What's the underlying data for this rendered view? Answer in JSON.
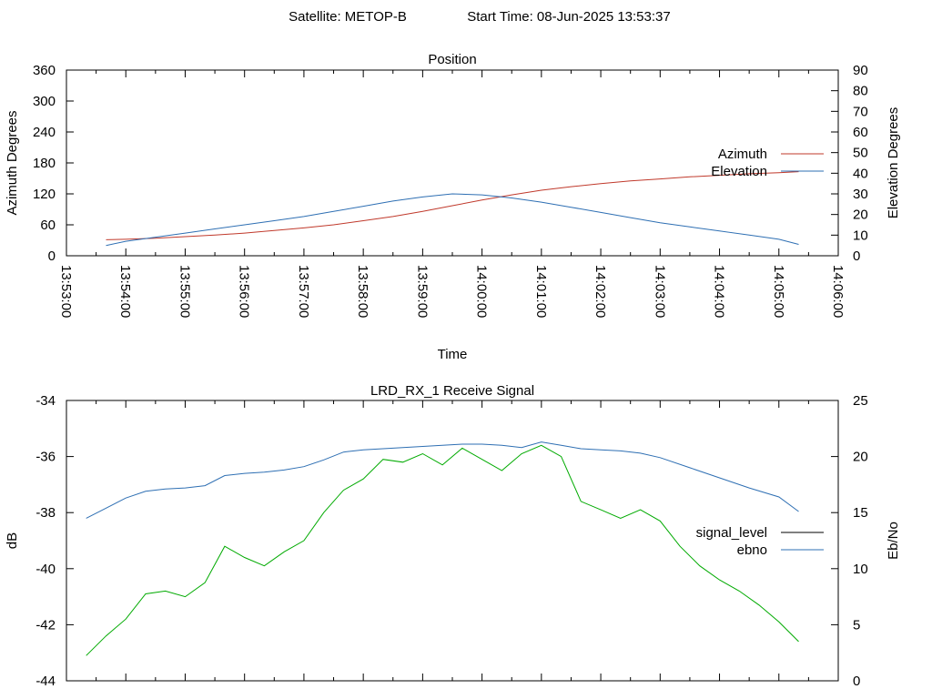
{
  "header": {
    "satellite": "Satellite: METOP-B",
    "start_time": "Start Time: 08-Jun-2025 13:53:37"
  },
  "chart_data": [
    {
      "type": "line",
      "title": "Position",
      "xlabel": "Time",
      "ylabel": "Azimuth Degrees",
      "y2label": "Elevation Degrees",
      "xlim": [
        "13:53:00",
        "14:06:00"
      ],
      "x_ticks": [
        "13:53:00",
        "13:54:00",
        "13:55:00",
        "13:56:00",
        "13:57:00",
        "13:58:00",
        "13:59:00",
        "14:00:00",
        "14:01:00",
        "14:02:00",
        "14:03:00",
        "14:04:00",
        "14:05:00",
        "14:06:00"
      ],
      "ylim": [
        0,
        360
      ],
      "y_ticks": [
        0,
        60,
        120,
        180,
        240,
        300,
        360
      ],
      "y2lim": [
        0,
        90
      ],
      "y2_ticks": [
        0,
        10,
        20,
        30,
        40,
        50,
        60,
        70,
        80,
        90
      ],
      "legend_position": "right",
      "grid": false,
      "series": [
        {
          "name": "Azimuth",
          "axis": "y",
          "color": "#c0392b",
          "x": [
            "13:53:40",
            "13:54:00",
            "13:54:30",
            "13:55:00",
            "13:55:30",
            "13:56:00",
            "13:56:30",
            "13:57:00",
            "13:57:30",
            "13:58:00",
            "13:58:30",
            "13:59:00",
            "13:59:30",
            "14:00:00",
            "14:00:30",
            "14:01:00",
            "14:01:30",
            "14:02:00",
            "14:02:30",
            "14:03:00",
            "14:03:30",
            "14:04:00",
            "14:04:30",
            "14:05:00",
            "14:05:20"
          ],
          "values": [
            31,
            32,
            34,
            37,
            40,
            44,
            49,
            54,
            60,
            68,
            76,
            86,
            97,
            108,
            118,
            127,
            134,
            140,
            145,
            149,
            153,
            156,
            159,
            161,
            163
          ]
        },
        {
          "name": "Elevation",
          "axis": "y2",
          "color": "#2e6fb3",
          "x": [
            "13:53:40",
            "13:54:00",
            "13:54:30",
            "13:55:00",
            "13:55:30",
            "13:56:00",
            "13:56:30",
            "13:57:00",
            "13:57:30",
            "13:58:00",
            "13:58:30",
            "13:59:00",
            "13:59:30",
            "14:00:00",
            "14:00:30",
            "14:01:00",
            "14:01:30",
            "14:02:00",
            "14:02:30",
            "14:03:00",
            "14:03:30",
            "14:04:00",
            "14:04:30",
            "14:05:00",
            "14:05:20"
          ],
          "values": [
            5,
            7,
            9,
            11,
            13,
            15,
            17,
            19,
            21.5,
            24,
            26.5,
            28.5,
            30,
            29.5,
            28,
            26,
            23.5,
            21,
            18.5,
            16,
            14,
            12,
            10,
            8,
            5.5
          ]
        }
      ]
    },
    {
      "type": "line",
      "title": "LRD_RX_1 Receive Signal",
      "xlabel": "",
      "ylabel": "dB",
      "y2label": "Eb/No",
      "xlim": [
        "13:53:00",
        "14:06:00"
      ],
      "ylim": [
        -44,
        -34
      ],
      "y_ticks": [
        -44,
        -42,
        -40,
        -38,
        -36,
        -34
      ],
      "y2lim": [
        0,
        25
      ],
      "y2_ticks": [
        0,
        5,
        10,
        15,
        20,
        25
      ],
      "legend_position": "right",
      "grid": false,
      "series": [
        {
          "name": "signal_level",
          "axis": "y",
          "color": "#00aa00",
          "legend_color": "#000000",
          "x": [
            "13:53:20",
            "13:53:40",
            "13:54:00",
            "13:54:20",
            "13:54:40",
            "13:55:00",
            "13:55:20",
            "13:55:40",
            "13:56:00",
            "13:56:20",
            "13:56:40",
            "13:57:00",
            "13:57:20",
            "13:57:40",
            "13:58:00",
            "13:58:20",
            "13:58:40",
            "13:59:00",
            "13:59:20",
            "13:59:40",
            "14:00:00",
            "14:00:20",
            "14:00:40",
            "14:01:00",
            "14:01:20",
            "14:01:40",
            "14:02:00",
            "14:02:20",
            "14:02:40",
            "14:03:00",
            "14:03:20",
            "14:03:40",
            "14:04:00",
            "14:04:20",
            "14:04:40",
            "14:05:00",
            "14:05:20"
          ],
          "values": [
            -43.1,
            -42.4,
            -41.8,
            -40.9,
            -40.8,
            -41.0,
            -40.5,
            -39.2,
            -39.6,
            -39.9,
            -39.4,
            -39.0,
            -38.0,
            -37.2,
            -36.8,
            -36.1,
            -36.2,
            -35.9,
            -36.3,
            -35.7,
            -36.1,
            -36.5,
            -35.9,
            -35.6,
            -36.0,
            -37.6,
            -37.9,
            -38.2,
            -37.9,
            -38.3,
            -39.2,
            -39.9,
            -40.4,
            -40.8,
            -41.3,
            -41.9,
            -42.6
          ]
        },
        {
          "name": "ebno",
          "axis": "y2",
          "color": "#2e6fb3",
          "x": [
            "13:53:20",
            "13:53:40",
            "13:54:00",
            "13:54:20",
            "13:54:40",
            "13:55:00",
            "13:55:20",
            "13:55:40",
            "13:56:00",
            "13:56:20",
            "13:56:40",
            "13:57:00",
            "13:57:20",
            "13:57:40",
            "13:58:00",
            "13:58:20",
            "13:58:40",
            "13:59:00",
            "13:59:20",
            "13:59:40",
            "14:00:00",
            "14:00:20",
            "14:00:40",
            "14:01:00",
            "14:01:20",
            "14:01:40",
            "14:02:00",
            "14:02:20",
            "14:02:40",
            "14:03:00",
            "14:03:30",
            "14:04:00",
            "14:04:30",
            "14:05:00",
            "14:05:20"
          ],
          "values": [
            14.5,
            15.4,
            16.3,
            16.9,
            17.1,
            17.2,
            17.4,
            18.3,
            18.5,
            18.6,
            18.8,
            19.1,
            19.7,
            20.4,
            20.6,
            20.7,
            20.8,
            20.9,
            21.0,
            21.1,
            21.1,
            21.0,
            20.8,
            21.3,
            21.0,
            20.7,
            20.6,
            20.5,
            20.3,
            19.9,
            19.0,
            18.1,
            17.2,
            16.4,
            15.1
          ]
        }
      ]
    }
  ]
}
